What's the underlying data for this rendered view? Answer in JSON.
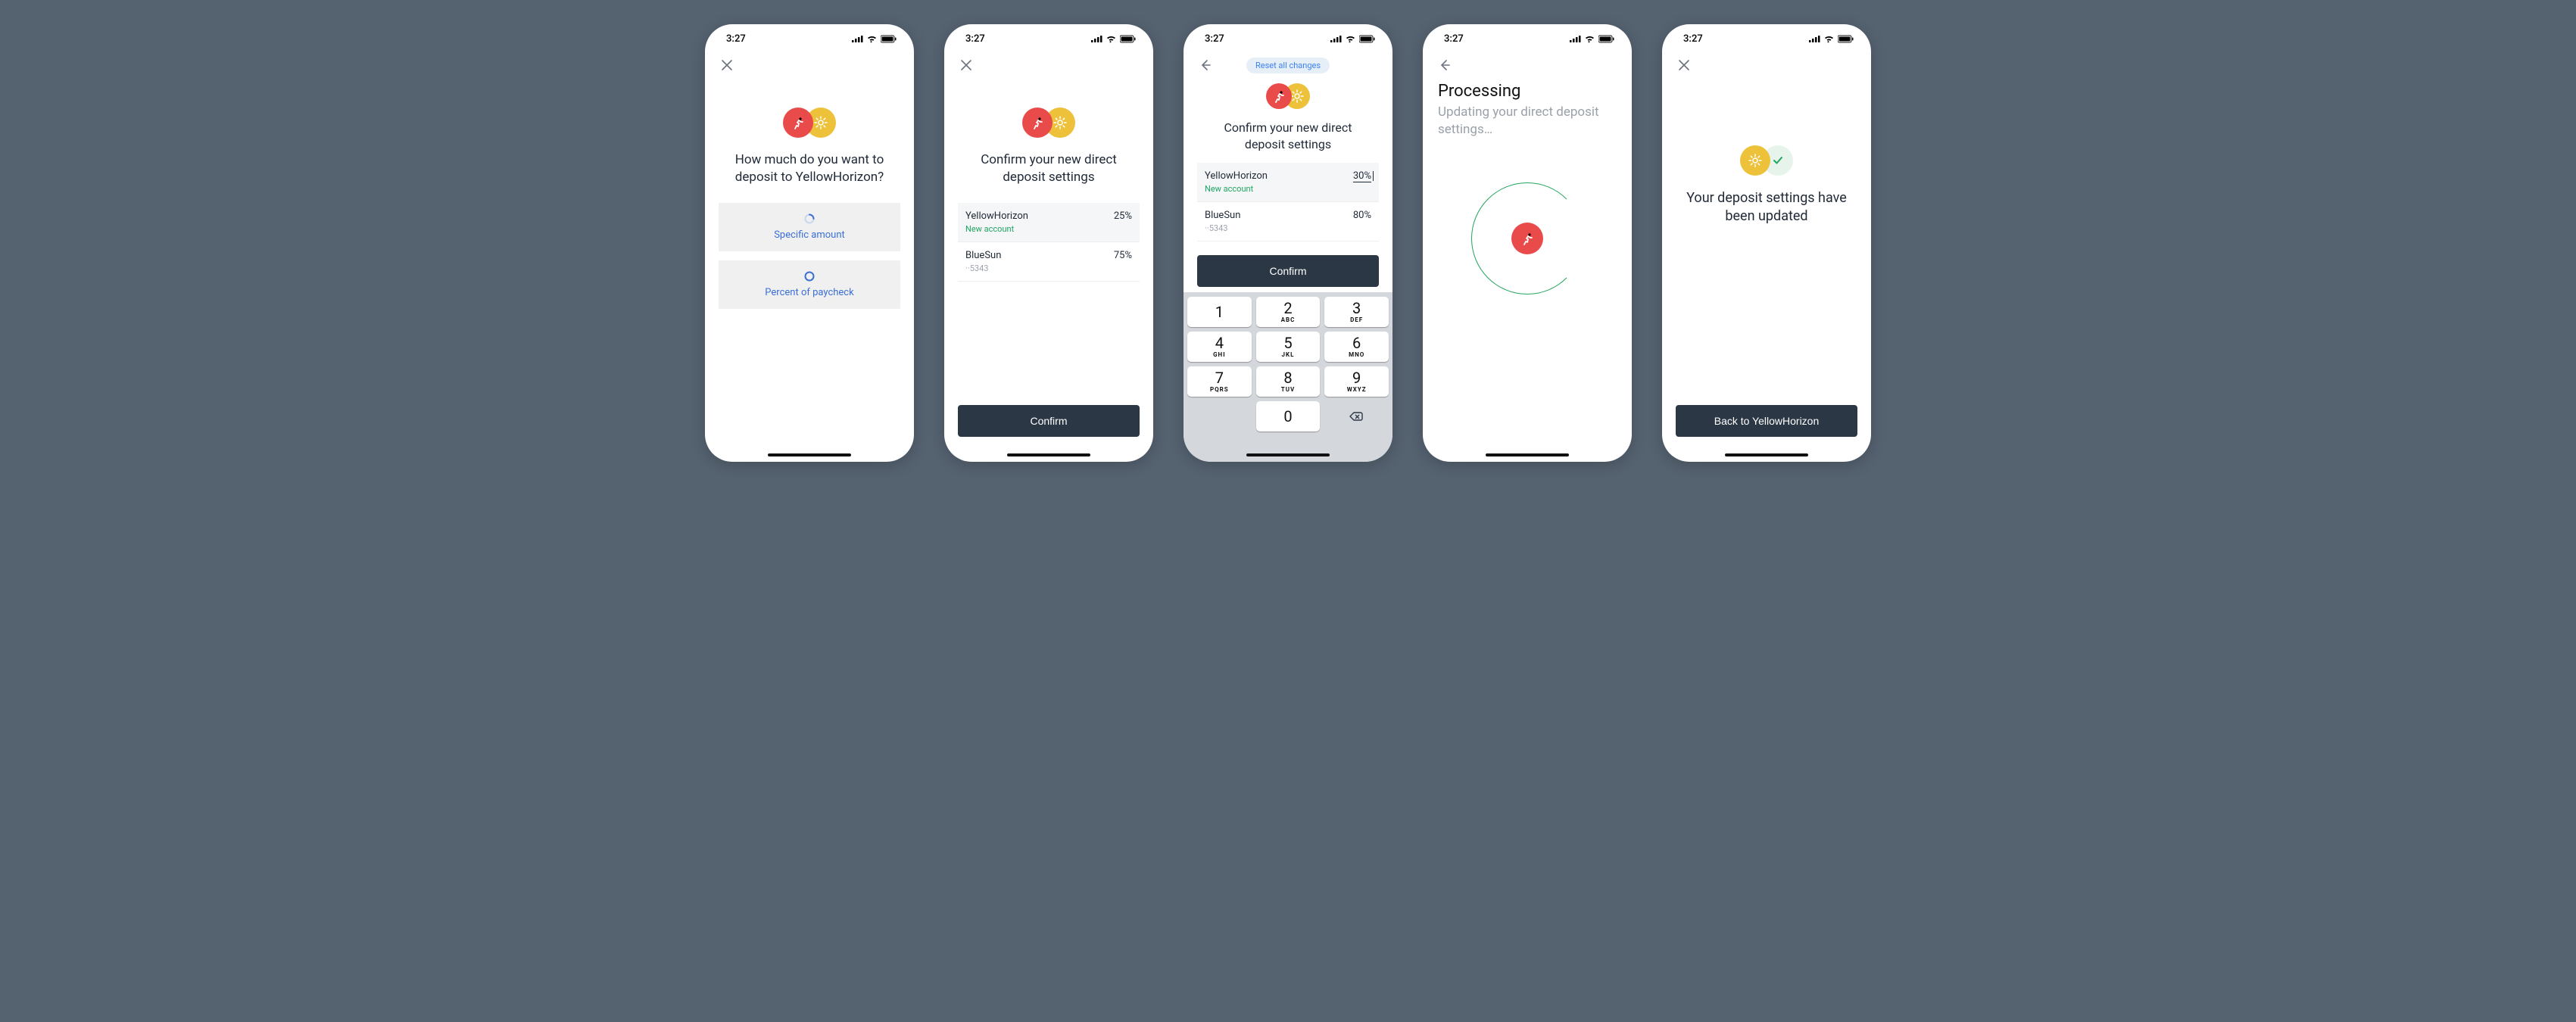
{
  "colors": {
    "page_bg": "#556270",
    "phone_bg": "#ffffff",
    "red": "#e94b4b",
    "yellow": "#edc23a",
    "check_bg": "#e6f4ec",
    "check_fg": "#22a55e",
    "primary_btn": "#2b3745",
    "link_blue": "#3b6fd6",
    "pill_bg": "#e6eff7",
    "pill_fg": "#3b82f6",
    "card_bg": "#f0f0f0",
    "row_new_bg": "#f5f6f7",
    "border": "#eceef0",
    "text_dark": "#1f2937",
    "text_muted": "#9ca3af",
    "text_green": "#1fa463",
    "keypad_bg": "#d4d7dc",
    "key_bg": "#ffffff",
    "spinner_ring": "#22a55e"
  },
  "status": {
    "time": "3:27"
  },
  "screen1": {
    "headline": "How much do you want to deposit to YellowHorizon?",
    "option1": "Specific amount",
    "option2": "Percent of paycheck"
  },
  "screen2": {
    "headline": "Confirm your new direct deposit settings",
    "accounts": [
      {
        "name": "YellowHorizon",
        "sub": "New account",
        "value": "25%",
        "new": true
      },
      {
        "name": "BlueSun",
        "sub": "··5343",
        "value": "75%",
        "new": false
      }
    ],
    "confirm": "Confirm"
  },
  "screen3": {
    "reset_label": "Reset all changes",
    "headline": "Confirm your new direct deposit settings",
    "accounts": [
      {
        "name": "YellowHorizon",
        "sub": "New account",
        "value": "30%",
        "new": true,
        "editing": true
      },
      {
        "name": "BlueSun",
        "sub": "··5343",
        "value": "80%",
        "new": false,
        "editing": false
      }
    ],
    "confirm": "Confirm",
    "keypad": [
      {
        "n": "1",
        "l": ""
      },
      {
        "n": "2",
        "l": "ABC"
      },
      {
        "n": "3",
        "l": "DEF"
      },
      {
        "n": "4",
        "l": "GHI"
      },
      {
        "n": "5",
        "l": "JKL"
      },
      {
        "n": "6",
        "l": "MNO"
      },
      {
        "n": "7",
        "l": "PQRS"
      },
      {
        "n": "8",
        "l": "TUV"
      },
      {
        "n": "9",
        "l": "WXYZ"
      },
      {
        "n": "",
        "l": ""
      },
      {
        "n": "0",
        "l": ""
      },
      {
        "n": "⌫",
        "l": ""
      }
    ]
  },
  "screen4": {
    "title": "Processing",
    "subtitle": "Updating your direct deposit settings…"
  },
  "screen5": {
    "headline": "Your deposit settings have been updated",
    "back": "Back to YellowHorizon"
  }
}
